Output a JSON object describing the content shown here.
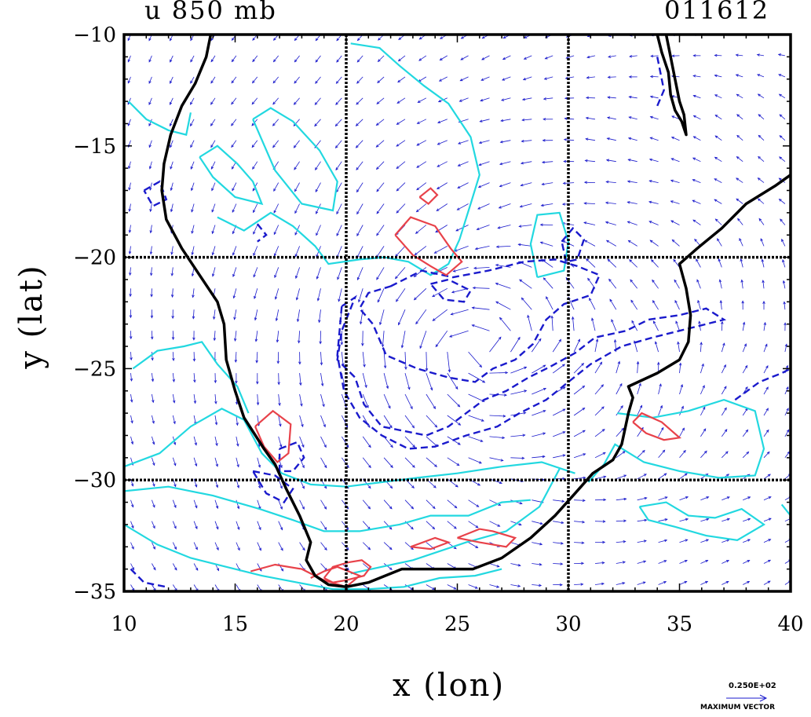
{
  "title_left": "u 850 mb",
  "title_right": "011612",
  "xlabel": "x (lon)",
  "ylabel": "y (lat)",
  "vector_legend": {
    "value_label": "0.250E+02",
    "caption": "MAXIMUM VECTOR"
  },
  "chart_data": {
    "type": "contour+vector",
    "xlim": [
      10,
      40
    ],
    "ylim": [
      -35,
      -10
    ],
    "x_ticks": [
      10,
      15,
      20,
      25,
      30,
      35,
      40
    ],
    "y_ticks": [
      -10,
      -15,
      -20,
      -25,
      -30,
      -35
    ],
    "x_tick_labels": [
      "10",
      "15",
      "20",
      "25",
      "30",
      "35",
      "40"
    ],
    "y_tick_labels": [
      "−10",
      "−15",
      "−20",
      "−25",
      "−30",
      "−35"
    ],
    "dotted_grid_lines": {
      "x": [
        20,
        30
      ],
      "y": [
        -20,
        -30
      ]
    },
    "colors": {
      "coast": "#000000",
      "positive_contour": "#e8424a",
      "zero_contour": "#22d8e0",
      "negative_contour": "#1a1acc",
      "vectors": "#1a1acc"
    },
    "coastline": [
      [
        13.9,
        -10.0
      ],
      [
        13.7,
        -11.0
      ],
      [
        13.2,
        -12.2
      ],
      [
        12.6,
        -13.2
      ],
      [
        12.1,
        -14.5
      ],
      [
        11.8,
        -15.8
      ],
      [
        11.7,
        -17.0
      ],
      [
        11.9,
        -18.3
      ],
      [
        12.6,
        -19.6
      ],
      [
        13.4,
        -20.8
      ],
      [
        14.2,
        -22.0
      ],
      [
        14.5,
        -23.0
      ],
      [
        14.6,
        -24.6
      ],
      [
        15.0,
        -26.0
      ],
      [
        15.4,
        -27.2
      ],
      [
        16.3,
        -28.6
      ],
      [
        16.8,
        -29.3
      ],
      [
        17.3,
        -30.4
      ],
      [
        17.9,
        -31.6
      ],
      [
        18.4,
        -32.8
      ],
      [
        18.2,
        -33.6
      ],
      [
        18.6,
        -34.3
      ],
      [
        19.2,
        -34.7
      ],
      [
        20.0,
        -34.8
      ],
      [
        21.0,
        -34.6
      ],
      [
        22.5,
        -34.0
      ],
      [
        24.2,
        -34.0
      ],
      [
        25.7,
        -34.0
      ],
      [
        27.0,
        -33.5
      ],
      [
        28.3,
        -32.6
      ],
      [
        29.4,
        -31.6
      ],
      [
        30.3,
        -30.6
      ],
      [
        31.1,
        -29.7
      ],
      [
        32.0,
        -29.1
      ],
      [
        32.4,
        -28.4
      ],
      [
        32.7,
        -27.0
      ],
      [
        32.9,
        -26.3
      ],
      [
        32.7,
        -25.8
      ],
      [
        34.0,
        -25.2
      ],
      [
        35.0,
        -24.6
      ],
      [
        35.4,
        -23.8
      ],
      [
        35.5,
        -22.6
      ],
      [
        35.3,
        -21.4
      ],
      [
        35.0,
        -20.3
      ],
      [
        35.8,
        -19.6
      ],
      [
        36.9,
        -18.7
      ],
      [
        38.0,
        -17.6
      ],
      [
        39.3,
        -16.8
      ],
      [
        40.0,
        -16.3
      ]
    ],
    "lake": [
      [
        34.4,
        -10.0
      ],
      [
        34.6,
        -11.0
      ],
      [
        34.8,
        -12.0
      ],
      [
        35.0,
        -13.0
      ],
      [
        35.2,
        -13.6
      ],
      [
        35.3,
        -14.5
      ],
      [
        35.1,
        -13.9
      ],
      [
        34.8,
        -13.4
      ],
      [
        34.6,
        -12.7
      ],
      [
        34.5,
        -11.7
      ],
      [
        34.2,
        -10.8
      ],
      [
        34.0,
        -10.0
      ]
    ],
    "contours_zero": [
      [
        [
          10.2,
          -13.0
        ],
        [
          11.0,
          -13.8
        ],
        [
          12.0,
          -14.3
        ],
        [
          12.8,
          -14.5
        ],
        [
          13.0,
          -13.5
        ]
      ],
      [
        [
          13.4,
          -15.5
        ],
        [
          14.2,
          -15.0
        ],
        [
          15.1,
          -15.8
        ],
        [
          15.8,
          -16.6
        ],
        [
          16.2,
          -17.6
        ],
        [
          15.0,
          -17.3
        ],
        [
          14.0,
          -16.4
        ],
        [
          13.4,
          -15.5
        ]
      ],
      [
        [
          15.8,
          -13.8
        ],
        [
          16.6,
          -13.3
        ],
        [
          17.6,
          -13.9
        ],
        [
          18.8,
          -15.2
        ],
        [
          19.6,
          -16.6
        ],
        [
          19.4,
          -17.9
        ],
        [
          18.0,
          -17.6
        ],
        [
          16.8,
          -16.1
        ],
        [
          15.8,
          -13.8
        ]
      ],
      [
        [
          14.2,
          -18.2
        ],
        [
          15.4,
          -18.8
        ],
        [
          16.6,
          -18.0
        ],
        [
          17.6,
          -18.6
        ],
        [
          18.6,
          -19.5
        ],
        [
          19.2,
          -20.3
        ],
        [
          20.6,
          -20.1
        ],
        [
          21.7,
          -20.0
        ],
        [
          22.8,
          -20.2
        ],
        [
          23.8,
          -20.8
        ],
        [
          24.6,
          -20.3
        ],
        [
          25.1,
          -19.2
        ],
        [
          25.6,
          -17.6
        ],
        [
          26.0,
          -16.3
        ],
        [
          25.6,
          -14.6
        ],
        [
          24.6,
          -13.1
        ],
        [
          23.5,
          -12.3
        ],
        [
          22.4,
          -11.4
        ],
        [
          21.5,
          -10.6
        ],
        [
          20.2,
          -10.4
        ]
      ],
      [
        [
          28.6,
          -20.9
        ],
        [
          28.3,
          -19.4
        ],
        [
          28.6,
          -18.1
        ],
        [
          29.6,
          -18.0
        ],
        [
          30.0,
          -19.3
        ],
        [
          29.8,
          -20.6
        ],
        [
          28.6,
          -20.9
        ]
      ],
      [
        [
          10.4,
          -25.0
        ],
        [
          11.5,
          -24.2
        ],
        [
          12.7,
          -24.0
        ],
        [
          13.5,
          -23.8
        ],
        [
          14.2,
          -24.8
        ],
        [
          15.1,
          -25.8
        ],
        [
          15.6,
          -27.0
        ]
      ],
      [
        [
          10.0,
          -29.4
        ],
        [
          11.6,
          -28.8
        ],
        [
          13.0,
          -27.6
        ],
        [
          14.4,
          -26.8
        ],
        [
          15.4,
          -27.3
        ],
        [
          16.2,
          -28.8
        ],
        [
          17.1,
          -29.7
        ],
        [
          18.4,
          -30.2
        ],
        [
          20.0,
          -30.3
        ],
        [
          21.6,
          -30.1
        ],
        [
          23.2,
          -29.9
        ],
        [
          25.0,
          -29.7
        ],
        [
          27.0,
          -29.4
        ],
        [
          28.8,
          -29.2
        ],
        [
          30.3,
          -29.7
        ]
      ],
      [
        [
          10.0,
          -30.5
        ],
        [
          12.0,
          -30.3
        ],
        [
          14.0,
          -30.7
        ],
        [
          16.1,
          -31.3
        ],
        [
          17.6,
          -31.8
        ],
        [
          19.0,
          -32.3
        ],
        [
          20.6,
          -32.3
        ],
        [
          22.4,
          -32.0
        ],
        [
          23.8,
          -31.6
        ],
        [
          25.5,
          -31.6
        ],
        [
          27.0,
          -31.0
        ],
        [
          28.3,
          -30.9
        ]
      ],
      [
        [
          10.0,
          -32.0
        ],
        [
          11.5,
          -32.9
        ],
        [
          13.0,
          -33.5
        ],
        [
          14.6,
          -33.9
        ],
        [
          16.2,
          -34.3
        ],
        [
          17.8,
          -34.6
        ],
        [
          19.4,
          -34.9
        ],
        [
          21.0,
          -34.9
        ],
        [
          22.6,
          -34.8
        ],
        [
          24.2,
          -34.4
        ],
        [
          25.8,
          -34.3
        ],
        [
          27.0,
          -34.0
        ]
      ],
      [
        [
          32.2,
          -27.0
        ],
        [
          33.8,
          -27.2
        ],
        [
          35.4,
          -26.9
        ],
        [
          37.0,
          -26.4
        ],
        [
          38.4,
          -26.9
        ],
        [
          38.8,
          -28.6
        ],
        [
          38.4,
          -29.8
        ],
        [
          36.8,
          -29.9
        ],
        [
          35.0,
          -29.6
        ],
        [
          33.4,
          -29.2
        ],
        [
          32.1,
          -28.4
        ],
        [
          31.6,
          -29.3
        ],
        [
          30.9,
          -30.1
        ]
      ],
      [
        [
          33.2,
          -31.2
        ],
        [
          34.4,
          -31.0
        ],
        [
          35.4,
          -31.6
        ],
        [
          36.6,
          -31.7
        ],
        [
          37.8,
          -31.3
        ],
        [
          38.8,
          -32.0
        ],
        [
          37.6,
          -32.7
        ],
        [
          36.2,
          -32.5
        ],
        [
          34.8,
          -32.1
        ],
        [
          33.6,
          -31.8
        ],
        [
          33.2,
          -31.2
        ]
      ],
      [
        [
          39.6,
          -31.1
        ],
        [
          40.0,
          -31.6
        ]
      ],
      [
        [
          20.2,
          -34.2
        ],
        [
          23.0,
          -33.6
        ],
        [
          25.4,
          -32.8
        ],
        [
          27.2,
          -32.3
        ],
        [
          28.7,
          -31.2
        ],
        [
          29.6,
          -29.5
        ]
      ]
    ],
    "contours_positive": [
      [
        [
          23.3,
          -17.3
        ],
        [
          23.8,
          -16.9
        ],
        [
          24.1,
          -17.2
        ],
        [
          23.7,
          -17.6
        ],
        [
          23.3,
          -17.3
        ]
      ],
      [
        [
          22.2,
          -19.0
        ],
        [
          22.9,
          -18.2
        ],
        [
          24.0,
          -18.6
        ],
        [
          24.7,
          -19.6
        ],
        [
          25.2,
          -20.2
        ],
        [
          24.5,
          -20.8
        ],
        [
          23.8,
          -20.4
        ],
        [
          23.0,
          -19.9
        ],
        [
          22.2,
          -19.0
        ]
      ],
      [
        [
          15.9,
          -27.6
        ],
        [
          16.7,
          -26.9
        ],
        [
          17.5,
          -27.5
        ],
        [
          17.4,
          -28.8
        ],
        [
          16.9,
          -29.2
        ],
        [
          16.3,
          -28.5
        ],
        [
          15.9,
          -27.6
        ]
      ],
      [
        [
          32.9,
          -27.4
        ],
        [
          33.3,
          -27.0
        ],
        [
          34.2,
          -27.4
        ],
        [
          35.0,
          -28.1
        ],
        [
          34.3,
          -28.2
        ],
        [
          33.5,
          -27.9
        ],
        [
          32.9,
          -27.4
        ]
      ],
      [
        [
          22.9,
          -33.0
        ],
        [
          24.0,
          -32.6
        ],
        [
          24.6,
          -32.8
        ],
        [
          23.8,
          -33.1
        ],
        [
          22.9,
          -33.0
        ]
      ],
      [
        [
          25.0,
          -32.6
        ],
        [
          26.0,
          -32.2
        ],
        [
          26.6,
          -32.3
        ],
        [
          27.6,
          -32.6
        ],
        [
          27.2,
          -33.0
        ],
        [
          26.0,
          -32.8
        ],
        [
          25.0,
          -32.6
        ]
      ],
      [
        [
          15.7,
          -34.1
        ],
        [
          16.8,
          -33.8
        ],
        [
          18.0,
          -34.0
        ],
        [
          19.0,
          -34.5
        ],
        [
          20.0,
          -34.8
        ],
        [
          20.6,
          -34.3
        ],
        [
          19.6,
          -33.9
        ],
        [
          19.0,
          -34.1
        ],
        [
          18.4,
          -34.4
        ]
      ],
      [
        [
          19.0,
          -34.4
        ],
        [
          19.4,
          -33.9
        ],
        [
          20.1,
          -33.7
        ],
        [
          20.7,
          -33.6
        ],
        [
          21.1,
          -33.9
        ],
        [
          20.8,
          -34.3
        ],
        [
          20.0,
          -34.5
        ],
        [
          19.4,
          -34.6
        ],
        [
          19.0,
          -34.4
        ]
      ]
    ],
    "contours_negative": [
      [
        [
          16.0,
          -18.5
        ],
        [
          16.4,
          -19.0
        ],
        [
          16.0,
          -19.3
        ]
      ],
      [
        [
          10.9,
          -17.0
        ],
        [
          11.6,
          -16.6
        ],
        [
          11.9,
          -17.4
        ],
        [
          11.3,
          -17.7
        ],
        [
          10.9,
          -17.0
        ]
      ],
      [
        [
          34.0,
          -11.0
        ],
        [
          34.3,
          -12.5
        ],
        [
          34.0,
          -13.2
        ]
      ],
      [
        [
          29.7,
          -19.3
        ],
        [
          30.2,
          -18.7
        ],
        [
          30.7,
          -19.2
        ],
        [
          30.4,
          -20.1
        ],
        [
          29.9,
          -20.2
        ],
        [
          29.7,
          -19.3
        ]
      ],
      [
        [
          22.0,
          -21.3
        ],
        [
          23.4,
          -20.6
        ],
        [
          24.8,
          -20.9
        ],
        [
          26.4,
          -20.6
        ],
        [
          28.0,
          -20.2
        ],
        [
          29.4,
          -20.1
        ],
        [
          30.4,
          -20.4
        ],
        [
          31.4,
          -20.8
        ],
        [
          31.0,
          -21.7
        ],
        [
          29.8,
          -22.1
        ],
        [
          29.0,
          -22.8
        ],
        [
          28.4,
          -23.9
        ],
        [
          27.6,
          -24.6
        ],
        [
          26.6,
          -25.0
        ],
        [
          25.8,
          -25.6
        ],
        [
          24.6,
          -25.4
        ],
        [
          23.2,
          -25.0
        ],
        [
          21.8,
          -24.4
        ],
        [
          21.2,
          -23.0
        ],
        [
          20.6,
          -22.3
        ],
        [
          21.0,
          -21.6
        ],
        [
          22.0,
          -21.3
        ]
      ],
      [
        [
          19.8,
          -22.2
        ],
        [
          20.4,
          -21.8
        ],
        [
          19.8,
          -23.3
        ],
        [
          19.6,
          -24.6
        ],
        [
          20.4,
          -25.4
        ],
        [
          20.8,
          -26.6
        ],
        [
          21.6,
          -27.6
        ],
        [
          22.6,
          -27.8
        ],
        [
          23.6,
          -28.0
        ],
        [
          24.6,
          -27.6
        ],
        [
          25.4,
          -27.0
        ],
        [
          26.2,
          -26.4
        ],
        [
          27.2,
          -26.0
        ],
        [
          28.2,
          -25.4
        ],
        [
          29.2,
          -24.9
        ],
        [
          30.3,
          -24.3
        ],
        [
          31.2,
          -23.6
        ],
        [
          32.6,
          -23.3
        ],
        [
          33.6,
          -22.8
        ],
        [
          35.0,
          -22.6
        ],
        [
          36.2,
          -22.3
        ],
        [
          37.0,
          -22.8
        ],
        [
          36.2,
          -23.0
        ],
        [
          35.0,
          -23.3
        ],
        [
          33.8,
          -23.6
        ],
        [
          32.4,
          -24.0
        ],
        [
          31.0,
          -24.8
        ],
        [
          30.0,
          -25.6
        ],
        [
          29.0,
          -26.4
        ],
        [
          27.8,
          -27.0
        ],
        [
          26.8,
          -27.6
        ],
        [
          25.4,
          -28.0
        ],
        [
          24.0,
          -28.5
        ],
        [
          22.8,
          -28.6
        ],
        [
          21.6,
          -28.0
        ],
        [
          20.6,
          -27.2
        ],
        [
          19.9,
          -26.0
        ],
        [
          19.6,
          -24.4
        ],
        [
          19.8,
          -22.2
        ]
      ],
      [
        [
          23.8,
          -21.2
        ],
        [
          24.6,
          -21.0
        ],
        [
          25.6,
          -21.5
        ],
        [
          25.3,
          -22.0
        ],
        [
          24.4,
          -21.9
        ],
        [
          23.8,
          -21.2
        ]
      ],
      [
        [
          17.0,
          -28.6
        ],
        [
          17.8,
          -28.3
        ],
        [
          18.1,
          -29.0
        ],
        [
          17.6,
          -29.6
        ],
        [
          17.0,
          -29.6
        ],
        [
          17.0,
          -28.6
        ]
      ],
      [
        [
          15.8,
          -29.6
        ],
        [
          16.8,
          -29.8
        ],
        [
          17.6,
          -30.4
        ],
        [
          17.2,
          -31.0
        ],
        [
          16.4,
          -30.6
        ],
        [
          15.8,
          -29.6
        ]
      ],
      [
        [
          37.5,
          -26.4
        ],
        [
          38.6,
          -25.6
        ],
        [
          39.6,
          -25.2
        ],
        [
          40.0,
          -25.0
        ]
      ],
      [
        [
          10.3,
          -34.0
        ],
        [
          10.9,
          -34.6
        ],
        [
          11.9,
          -34.8
        ]
      ]
    ]
  }
}
